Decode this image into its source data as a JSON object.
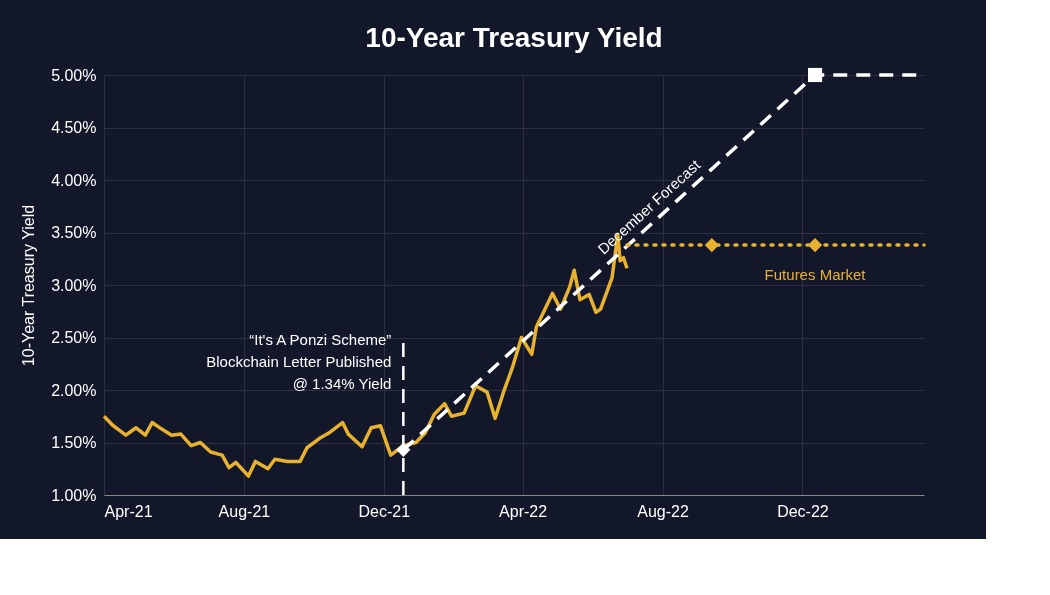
{
  "chart_data": {
    "type": "line",
    "title": "10-Year Treasury Yield",
    "ylabel": "10-Year Treasury Yield",
    "xlim": [
      "2021-04-01",
      "2023-03-17"
    ],
    "xticks": [
      {
        "value": "2021-04-01",
        "label": "Apr-21"
      },
      {
        "value": "2021-08-01",
        "label": "Aug-21"
      },
      {
        "value": "2021-12-01",
        "label": "Dec-21"
      },
      {
        "value": "2022-04-01",
        "label": "Apr-22"
      },
      {
        "value": "2022-08-01",
        "label": "Aug-22"
      },
      {
        "value": "2022-12-01",
        "label": "Dec-22"
      }
    ],
    "ylim": [
      1,
      5
    ],
    "yticks": [
      {
        "value": 1,
        "label": "1.00%"
      },
      {
        "value": 1.5,
        "label": "1.50%"
      },
      {
        "value": 2,
        "label": "2.00%"
      },
      {
        "value": 2.5,
        "label": "2.50%"
      },
      {
        "value": 3,
        "label": "3.00%"
      },
      {
        "value": 3.5,
        "label": "3.50%"
      },
      {
        "value": 4,
        "label": "4.00%"
      },
      {
        "value": 4.5,
        "label": "4.50%"
      },
      {
        "value": 5,
        "label": "5.00%"
      }
    ],
    "grid": true,
    "series": [
      {
        "color": "#e8b130",
        "line_style": "solid",
        "x": [
          "2021-04-01",
          "2021-04-09",
          "2021-04-20",
          "2021-04-29",
          "2021-05-07",
          "2021-05-13",
          "2021-05-21",
          "2021-05-30",
          "2021-06-07",
          "2021-06-16",
          "2021-06-24",
          "2021-07-03",
          "2021-07-13",
          "2021-07-19",
          "2021-07-25",
          "2021-08-05",
          "2021-08-11",
          "2021-08-22",
          "2021-08-28",
          "2021-09-08",
          "2021-09-19",
          "2021-09-25",
          "2021-10-06",
          "2021-10-14",
          "2021-10-26",
          "2021-10-31",
          "2021-11-12",
          "2021-11-20",
          "2021-11-28",
          "2021-12-07",
          "2021-12-18",
          "2021-12-29",
          "2022-01-06",
          "2022-01-14",
          "2022-01-23",
          "2022-01-29",
          "2022-02-09",
          "2022-02-19",
          "2022-03-01",
          "2022-03-08",
          "2022-03-16",
          "2022-03-23",
          "2022-03-31",
          "2022-04-09",
          "2022-04-13",
          "2022-04-21",
          "2022-04-27",
          "2022-05-04",
          "2022-05-12",
          "2022-05-16",
          "2022-05-21",
          "2022-05-29",
          "2022-06-04",
          "2022-06-08",
          "2022-06-15",
          "2022-06-18",
          "2022-06-23",
          "2022-06-25",
          "2022-06-28",
          "2022-07-01"
        ],
        "values": [
          1.75,
          1.66,
          1.57,
          1.64,
          1.57,
          1.69,
          1.63,
          1.57,
          1.58,
          1.47,
          1.5,
          1.41,
          1.38,
          1.26,
          1.31,
          1.18,
          1.32,
          1.25,
          1.34,
          1.32,
          1.32,
          1.45,
          1.54,
          1.59,
          1.69,
          1.58,
          1.46,
          1.64,
          1.66,
          1.38,
          1.47,
          1.5,
          1.59,
          1.77,
          1.87,
          1.75,
          1.78,
          2.04,
          1.98,
          1.73,
          2.0,
          2.21,
          2.5,
          2.34,
          2.6,
          2.78,
          2.92,
          2.77,
          2.98,
          3.14,
          2.86,
          2.91,
          2.74,
          2.77,
          2.98,
          3.07,
          3.48,
          3.23,
          3.26,
          3.16
        ]
      },
      {
        "type": "line",
        "name": "December Forecast",
        "color": "#ffffff",
        "line_style": "dashed",
        "x": [
          "2021-12-18",
          "2022-12-12",
          "2023-03-17"
        ],
        "values": [
          1.43,
          5.0,
          5.0
        ]
      },
      {
        "type": "scatter",
        "color": "#ffffff",
        "marker": "diamond",
        "x": [
          "2021-12-18"
        ],
        "values": [
          1.43
        ]
      },
      {
        "type": "scatter",
        "color": "#ffffff",
        "marker": "square",
        "x": [
          "2022-12-12"
        ],
        "values": [
          5.0
        ]
      },
      {
        "type": "line",
        "name": "Futures Market",
        "color": "#e8b130",
        "line_style": "dotted",
        "x": [
          "2022-07-01",
          "2022-09-13",
          "2022-12-12",
          "2023-03-17"
        ],
        "values": [
          3.38,
          3.38,
          3.38,
          3.38
        ]
      },
      {
        "type": "scatter",
        "color": "#e8b130",
        "marker": "diamond",
        "x": [
          "2022-09-13",
          "2022-12-12"
        ],
        "values": [
          3.38,
          3.38
        ]
      }
    ],
    "ref_lines": [
      {
        "axis": "x",
        "value": "2021-12-18",
        "color": "#ffffff",
        "line_style": "dashed"
      }
    ],
    "annotations": [
      "“It's A Ponzi Scheme”",
      "Blockchain Letter Published",
      "@ 1.34% Yield"
    ]
  }
}
